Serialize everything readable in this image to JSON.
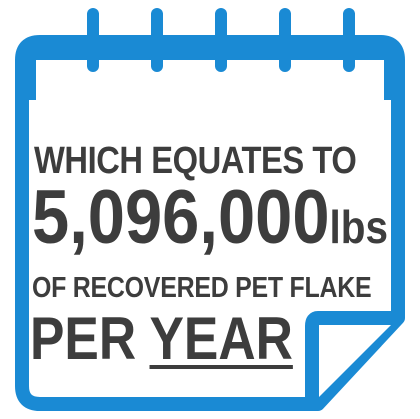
{
  "colors": {
    "calendar_blue": "#1a8ad4",
    "text_gray": "#3d3d3d",
    "background": "#ffffff"
  },
  "icon": "calendar-icon",
  "lines": {
    "line1": "WHICH EQUATES TO",
    "line2_number": "5,096,000",
    "line2_unit": "lbs",
    "line3": "OF RECOVERED PET FLAKE",
    "line4_prefix": "PER ",
    "line4_emphasis": "YEAR"
  }
}
